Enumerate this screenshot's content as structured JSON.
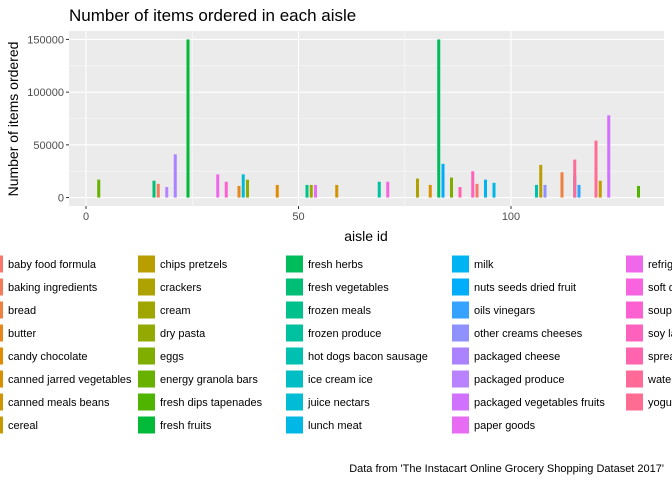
{
  "chart_data": {
    "type": "bar",
    "title": "Number of items ordered in each aisle",
    "xlabel": "aisle id",
    "ylabel": "Number of items ordered",
    "xlim": [
      -4,
      136
    ],
    "ylim": [
      -8000,
      158000
    ],
    "x_ticks": [
      0,
      50,
      100
    ],
    "y_ticks": [
      0,
      50000,
      100000,
      150000
    ],
    "y_tick_labels": [
      "0",
      "50000",
      "100000",
      "150000"
    ],
    "grid": true,
    "panel_background": "#ebebeb",
    "legend_position": "bottom",
    "caption": "Data from 'The Instacart Online Grocery Shopping Dataset 2017'",
    "series": [
      {
        "name": "baby food formula",
        "color": "#F8766D",
        "x": 92,
        "value": 13000
      },
      {
        "name": "baking ingredients",
        "color": "#F37B59",
        "x": 17,
        "value": 13000
      },
      {
        "name": "bread",
        "color": "#ED8141",
        "x": 112,
        "value": 24000
      },
      {
        "name": "butter",
        "color": "#E7861B",
        "x": 36,
        "value": 11000
      },
      {
        "name": "candy chocolate",
        "color": "#DF8C00",
        "x": 45,
        "value": 12000
      },
      {
        "name": "canned jarred vegetables",
        "color": "#D79000",
        "x": 81,
        "value": 12000
      },
      {
        "name": "canned meals beans",
        "color": "#CE9500",
        "x": 59,
        "value": 12000
      },
      {
        "name": "cereal",
        "color": "#C49A00",
        "x": 121,
        "value": 16000
      },
      {
        "name": "chips pretzels",
        "color": "#B99E00",
        "x": 107,
        "value": 31000
      },
      {
        "name": "crackers",
        "color": "#ADA200",
        "x": 78,
        "value": 18000
      },
      {
        "name": "cream",
        "color": "#A0A600",
        "x": 53,
        "value": 12000
      },
      {
        "name": "dry pasta",
        "color": "#93AA00",
        "x": 38,
        "value": 17000
      },
      {
        "name": "eggs",
        "color": "#7FAE00",
        "x": 86,
        "value": 19000
      },
      {
        "name": "energy granola bars",
        "color": "#69B100",
        "x": 3,
        "value": 17000
      },
      {
        "name": "fresh dips tapenades",
        "color": "#4FB400",
        "x": 130,
        "value": 11000
      },
      {
        "name": "fresh fruits",
        "color": "#00BA38",
        "x": 24,
        "value": 150000
      },
      {
        "name": "fresh herbs",
        "color": "#00BD5C",
        "x": 83,
        "value": 150000
      },
      {
        "name": "fresh vegetables",
        "color": "#00BF74",
        "x": 16,
        "value": 16000
      },
      {
        "name": "frozen meals",
        "color": "#00C08B",
        "x": 52,
        "value": 12000
      },
      {
        "name": "frozen produce",
        "color": "#00C19F",
        "x": 69,
        "value": 15000
      },
      {
        "name": "hot dogs bacon sausage",
        "color": "#00C0B2",
        "x": 106,
        "value": 12000
      },
      {
        "name": "ice cream ice",
        "color": "#00BEC4",
        "x": 115,
        "value": 21000
      },
      {
        "name": "juice nectars",
        "color": "#00BCD5",
        "x": 37,
        "value": 22000
      },
      {
        "name": "lunch meat",
        "color": "#00B8E5",
        "x": 96,
        "value": 14000
      },
      {
        "name": "milk",
        "color": "#00B3F2",
        "x": 94,
        "value": 17000
      },
      {
        "name": "nuts seeds dried fruit",
        "color": "#00ADFA",
        "x": 84,
        "value": 32000
      },
      {
        "name": "oils vinegars",
        "color": "#35A2FF",
        "x": 116,
        "value": 12000
      },
      {
        "name": "other creams cheeses",
        "color": "#8F91FF",
        "x": 108,
        "value": 12000
      },
      {
        "name": "packaged cheese",
        "color": "#AB82FF",
        "x": 21,
        "value": 41000
      },
      {
        "name": "packaged produce",
        "color": "#B983FF",
        "x": 19,
        "value": 10000
      },
      {
        "name": "packaged vegetables fruits",
        "color": "#D071FF",
        "x": 123,
        "value": 78000
      },
      {
        "name": "paper goods",
        "color": "#E76BF3",
        "x": 54,
        "value": 12000
      },
      {
        "name": "refrigerated",
        "color": "#EF67EB",
        "x": 31,
        "value": 22000
      },
      {
        "name": "soft drinks",
        "color": "#F863DF",
        "x": 71,
        "value": 15000
      },
      {
        "name": "soup broth bouillon",
        "color": "#FD61D1",
        "x": 33,
        "value": 15000
      },
      {
        "name": "soy lactosefree",
        "color": "#FF62BC",
        "x": 91,
        "value": 25000
      },
      {
        "name": "spreads",
        "color": "#FF65AE",
        "x": 88,
        "value": 10000
      },
      {
        "name": "water seltzer sparkling water",
        "color": "#FF6A98",
        "x": 115,
        "value": 36000
      },
      {
        "name": "yogurt",
        "color": "#FF6C91",
        "x": 120,
        "value": 54000
      }
    ]
  }
}
